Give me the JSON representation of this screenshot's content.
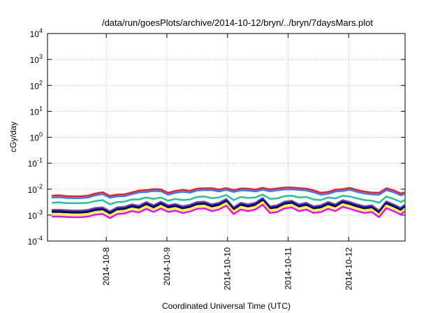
{
  "chart_data": {
    "type": "line",
    "title": "/data/run/goesPlots/archive/2014-10-12/bryn/../bryn/7daysMars.plot",
    "xlabel": "Coordinated Universal Time (UTC)",
    "ylabel": "cGy/day",
    "yscale": "log",
    "ylim": [
      0.0001,
      10000
    ],
    "xlim_day_of_october_2014": [
      7.03,
      12.93
    ],
    "grid": true,
    "legend": "none",
    "x_tick_values": [
      8,
      9,
      10,
      11,
      12
    ],
    "x_tick_labels": [
      "2014-10-8",
      "2014-10-9",
      "2014-10-10",
      "2014-10-11",
      "2014-10-12"
    ],
    "y_ticks": [
      {
        "value": 10000,
        "base": "10",
        "exp": "4"
      },
      {
        "value": 1000,
        "base": "10",
        "exp": "3"
      },
      {
        "value": 100,
        "base": "10",
        "exp": "2"
      },
      {
        "value": 10,
        "base": "10",
        "exp": "1"
      },
      {
        "value": 1,
        "base": "10",
        "exp": "0"
      },
      {
        "value": 0.1,
        "base": "10",
        "exp": "-1"
      },
      {
        "value": 0.01,
        "base": "10",
        "exp": "-2"
      },
      {
        "value": 0.001,
        "base": "10",
        "exp": "-3"
      },
      {
        "value": 0.0001,
        "base": "10",
        "exp": "-4"
      }
    ],
    "value_scale": 0.001,
    "x": [
      7.1,
      7.22,
      7.34,
      7.46,
      7.58,
      7.7,
      7.82,
      7.94,
      8.06,
      8.18,
      8.3,
      8.42,
      8.54,
      8.66,
      8.78,
      8.9,
      9.02,
      9.14,
      9.26,
      9.38,
      9.5,
      9.62,
      9.74,
      9.86,
      9.98,
      10.1,
      10.22,
      10.34,
      10.46,
      10.58,
      10.7,
      10.82,
      10.94,
      11.06,
      11.18,
      11.3,
      11.42,
      11.54,
      11.66,
      11.78,
      11.9,
      12.02,
      12.14,
      12.26,
      12.38,
      12.5,
      12.62,
      12.74,
      12.86,
      12.92
    ],
    "series": [
      {
        "name": "red",
        "color": "#ff1a1a",
        "values": [
          5.6,
          5.8,
          5.4,
          5.3,
          5.3,
          5.6,
          6.8,
          7.6,
          5.5,
          6.2,
          6.3,
          7.5,
          8.8,
          9.2,
          10.0,
          9.8,
          7.2,
          8.5,
          9.4,
          8.6,
          10.5,
          10.8,
          10.9,
          9.6,
          11.0,
          9.2,
          10.6,
          10.4,
          9.6,
          11.2,
          9.8,
          10.6,
          11.5,
          11.6,
          11.0,
          10.5,
          9.0,
          7.2,
          7.8,
          9.6,
          10.0,
          11.2,
          9.2,
          8.0,
          7.4,
          7.2,
          10.8,
          9.0,
          6.8,
          7.6
        ]
      },
      {
        "name": "blue",
        "color": "#2a7fff",
        "values": [
          4.76,
          4.93,
          4.59,
          4.5,
          4.5,
          4.76,
          5.78,
          6.46,
          4.68,
          5.27,
          5.36,
          6.38,
          7.48,
          7.82,
          8.5,
          8.33,
          6.12,
          7.23,
          7.99,
          7.31,
          8.93,
          9.18,
          9.27,
          8.16,
          9.35,
          7.82,
          9.01,
          8.84,
          8.16,
          9.52,
          8.33,
          9.01,
          9.78,
          9.86,
          9.35,
          8.93,
          7.65,
          6.12,
          6.63,
          8.16,
          8.5,
          9.52,
          7.82,
          6.8,
          6.29,
          6.12,
          9.18,
          7.65,
          5.78,
          6.46
        ]
      },
      {
        "name": "teal",
        "color": "#1fc49a",
        "values": [
          3.0,
          3.1,
          2.9,
          2.9,
          2.9,
          3.0,
          3.5,
          3.8,
          2.6,
          3.2,
          3.3,
          4.0,
          4.0,
          4.8,
          4.2,
          4.8,
          3.6,
          4.2,
          3.8,
          4.0,
          5.0,
          5.2,
          4.5,
          4.8,
          6.0,
          3.8,
          5.0,
          4.6,
          4.8,
          6.2,
          4.2,
          4.4,
          5.4,
          5.6,
          4.8,
          5.0,
          4.0,
          3.8,
          4.8,
          4.4,
          5.6,
          5.2,
          4.4,
          3.8,
          3.6,
          3.0,
          5.2,
          4.2,
          3.2,
          3.8
        ]
      },
      {
        "name": "purple",
        "color": "#8b4f78",
        "values": [
          1.6,
          1.6,
          1.55,
          1.5,
          1.5,
          1.6,
          1.9,
          2.0,
          1.4,
          2.0,
          2.1,
          2.6,
          2.3,
          3.2,
          2.4,
          3.3,
          2.4,
          2.7,
          2.2,
          2.5,
          3.2,
          3.3,
          2.6,
          3.0,
          4.2,
          2.0,
          3.0,
          2.6,
          3.0,
          4.6,
          2.2,
          2.4,
          3.3,
          3.6,
          2.6,
          3.0,
          2.2,
          2.4,
          3.2,
          2.6,
          3.8,
          3.2,
          2.6,
          2.2,
          2.4,
          1.5,
          3.4,
          2.6,
          1.9,
          2.5
        ]
      },
      {
        "name": "dark-blue",
        "color": "#0000ff",
        "values": [
          1.41,
          1.41,
          1.36,
          1.32,
          1.32,
          1.41,
          1.67,
          1.76,
          1.23,
          1.76,
          1.85,
          2.29,
          2.02,
          2.82,
          2.11,
          2.9,
          2.11,
          2.38,
          1.94,
          2.2,
          2.82,
          2.9,
          2.29,
          2.64,
          3.7,
          1.76,
          2.64,
          2.29,
          2.64,
          4.05,
          1.94,
          2.11,
          2.9,
          3.17,
          2.29,
          2.64,
          1.94,
          2.11,
          2.82,
          2.29,
          3.34,
          2.82,
          2.29,
          1.94,
          2.11,
          1.32,
          2.99,
          2.29,
          1.67,
          2.2
        ]
      },
      {
        "name": "black",
        "color": "#000000",
        "values": [
          1.28,
          1.28,
          1.24,
          1.2,
          1.2,
          1.28,
          1.52,
          1.6,
          1.12,
          1.6,
          1.68,
          2.08,
          1.84,
          2.56,
          1.92,
          2.64,
          1.92,
          2.16,
          1.76,
          2.0,
          2.56,
          2.64,
          2.08,
          2.4,
          3.36,
          1.6,
          2.4,
          2.08,
          2.4,
          3.68,
          1.76,
          1.92,
          2.64,
          2.88,
          2.08,
          2.4,
          1.76,
          1.92,
          2.56,
          2.08,
          3.04,
          2.56,
          2.08,
          1.76,
          1.92,
          1.2,
          2.72,
          2.08,
          1.52,
          2.0
        ]
      },
      {
        "name": "yellow",
        "color": "#ffff00",
        "values": [
          1.12,
          1.12,
          1.09,
          1.05,
          1.05,
          1.12,
          1.33,
          1.4,
          0.98,
          1.4,
          1.47,
          1.82,
          1.61,
          2.24,
          1.68,
          2.31,
          1.68,
          1.89,
          1.54,
          1.75,
          2.24,
          2.31,
          1.82,
          2.1,
          2.94,
          1.4,
          2.1,
          1.82,
          2.1,
          3.22,
          1.54,
          1.68,
          2.31,
          2.52,
          1.82,
          2.1,
          1.54,
          1.68,
          2.24,
          1.82,
          2.66,
          2.24,
          1.82,
          1.54,
          1.68,
          1.05,
          2.38,
          1.82,
          1.33,
          1.75
        ]
      },
      {
        "name": "magenta",
        "color": "#ff00ff",
        "values": [
          0.88,
          0.88,
          0.85,
          0.83,
          0.83,
          0.88,
          1.05,
          1.1,
          0.77,
          1.1,
          1.16,
          1.43,
          1.27,
          1.76,
          1.32,
          1.82,
          1.32,
          1.49,
          1.21,
          1.38,
          1.76,
          1.82,
          1.43,
          1.65,
          2.31,
          1.1,
          1.65,
          1.43,
          1.65,
          2.53,
          1.21,
          1.32,
          1.82,
          1.98,
          1.43,
          1.65,
          1.21,
          1.32,
          1.76,
          1.43,
          2.09,
          1.76,
          1.43,
          1.21,
          1.32,
          0.83,
          1.87,
          1.43,
          1.05,
          1.38
        ]
      }
    ]
  }
}
